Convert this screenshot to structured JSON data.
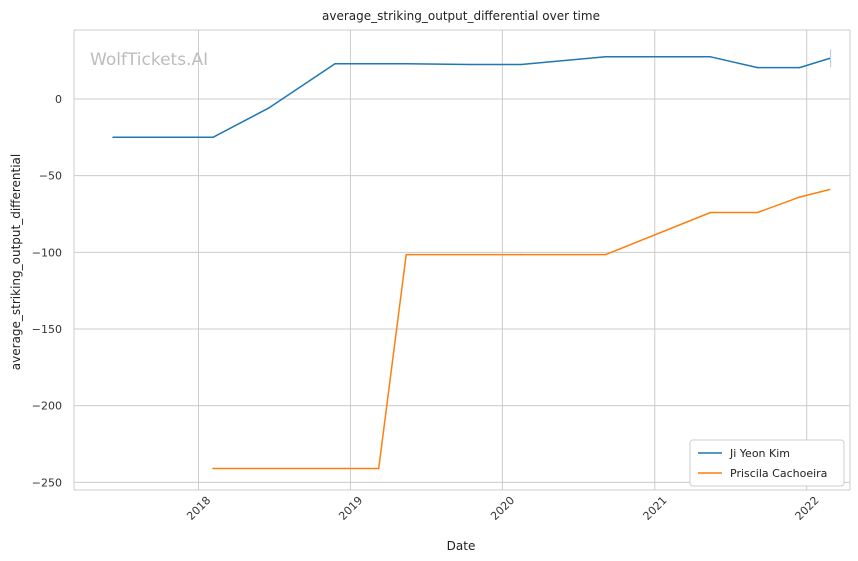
{
  "chart_data": {
    "type": "line",
    "title": "average_striking_output_differential over time",
    "xlabel": "Date",
    "ylabel": "average_striking_output_differential",
    "watermark": "WolfTickets.AI",
    "xlim": [
      "2017-03-08",
      "2022-04-15"
    ],
    "ylim": [
      -255,
      45
    ],
    "x_ticks": [
      "2018-01-01",
      "2019-01-01",
      "2020-01-01",
      "2021-01-01",
      "2022-01-01"
    ],
    "x_tick_labels": [
      "2018",
      "2019",
      "2020",
      "2021",
      "2022"
    ],
    "y_ticks": [
      0,
      -50,
      -100,
      -150,
      -200,
      -250
    ],
    "y_tick_labels": [
      "0",
      "−50",
      "−100",
      "−150",
      "−200",
      "−250"
    ],
    "grid": true,
    "legend_position": "bottom-right",
    "series": [
      {
        "name": "Ji Yeon Kim",
        "color": "#1f77b4",
        "points": [
          [
            "2017-06-10",
            -25
          ],
          [
            "2018-02-05",
            -25
          ],
          [
            "2018-06-18",
            -6
          ],
          [
            "2018-11-25",
            23
          ],
          [
            "2019-05-15",
            23
          ],
          [
            "2019-10-15",
            22.5
          ],
          [
            "2020-02-15",
            22.5
          ],
          [
            "2020-09-05",
            27.5
          ],
          [
            "2021-05-15",
            27.5
          ],
          [
            "2021-09-05",
            20.5
          ],
          [
            "2021-12-15",
            20.5
          ],
          [
            "2022-02-25",
            26.5
          ]
        ]
      },
      {
        "name": "Priscila Cachoeira",
        "color": "#ff7f0e",
        "points": [
          [
            "2018-02-05",
            -241
          ],
          [
            "2019-03-10",
            -241
          ],
          [
            "2019-05-15",
            -101.5
          ],
          [
            "2020-02-15",
            -101.5
          ],
          [
            "2020-09-05",
            -101.5
          ],
          [
            "2021-05-15",
            -74
          ],
          [
            "2021-09-05",
            -74
          ],
          [
            "2021-12-15",
            -64
          ],
          [
            "2022-02-25",
            -59
          ]
        ]
      }
    ]
  }
}
